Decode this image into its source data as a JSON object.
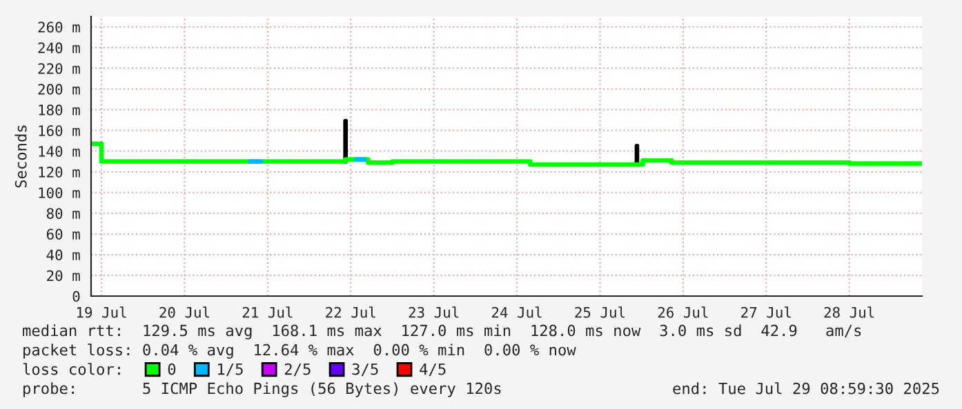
{
  "chart_data": {
    "type": "step",
    "ylabel": "Seconds",
    "legend_title": "loss color:",
    "legend": "bottom",
    "grid": true,
    "xlim": [
      "2025-07-19T09:00",
      "2025-07-29T09:00"
    ],
    "xticks": [
      {
        "value": "2025-07-19T12:00",
        "label": "19 Jul"
      },
      {
        "value": "2025-07-20T12:00",
        "label": "20 Jul"
      },
      {
        "value": "2025-07-21T12:00",
        "label": "21 Jul"
      },
      {
        "value": "2025-07-22T12:00",
        "label": "22 Jul"
      },
      {
        "value": "2025-07-23T12:00",
        "label": "23 Jul"
      },
      {
        "value": "2025-07-24T12:00",
        "label": "24 Jul"
      },
      {
        "value": "2025-07-25T12:00",
        "label": "25 Jul"
      },
      {
        "value": "2025-07-26T12:00",
        "label": "26 Jul"
      },
      {
        "value": "2025-07-27T12:00",
        "label": "27 Jul"
      },
      {
        "value": "2025-07-28T12:00",
        "label": "28 Jul"
      }
    ],
    "ylim": [
      0,
      270
    ],
    "yticks": [
      0,
      {
        "value": 20,
        "label": "20 m"
      },
      {
        "value": 40,
        "label": "40 m"
      },
      {
        "value": 60,
        "label": "60 m"
      },
      {
        "value": 80,
        "label": "80 m"
      },
      {
        "value": 100,
        "label": "100 m"
      },
      {
        "value": 120,
        "label": "120 m"
      },
      {
        "value": 140,
        "label": "140 m"
      },
      {
        "value": 160,
        "label": "160 m"
      },
      {
        "value": 180,
        "label": "180 m"
      },
      {
        "value": 200,
        "label": "200 m"
      },
      {
        "value": 220,
        "label": "220 m"
      },
      {
        "value": 240,
        "label": "240 m"
      },
      {
        "value": 260,
        "label": "260 m"
      }
    ],
    "series": [
      {
        "type": "line",
        "color": "#000000",
        "x": [
          "2025-07-22T10:30",
          "2025-07-22T10:30",
          "2025-07-23T00:00",
          "2025-07-25T22:40",
          "2025-07-25T22:40"
        ],
        "values": [
          130,
          169,
          null,
          127,
          145
        ]
      },
      {
        "name": "0",
        "color": "#00ff00",
        "x": [
          "2025-07-19T09:00",
          "2025-07-19T12:00",
          "2025-07-22T10:30",
          "2025-07-22T17:00",
          "2025-07-23T00:00",
          "2025-07-24T15:50",
          "2025-07-26T00:20",
          "2025-07-26T08:40",
          "2025-07-28T12:00",
          "2025-07-29T09:00"
        ],
        "values": [
          147,
          130,
          132,
          129,
          130,
          127,
          131,
          129,
          128,
          128
        ]
      },
      {
        "name": "1/5",
        "type": "line",
        "color": "#00b8ff",
        "x": [
          "2025-07-21T07:00",
          "2025-07-21T10:00",
          "2025-07-22T00:00",
          "2025-07-22T13:30",
          "2025-07-22T16:00"
        ],
        "values": [
          130,
          130,
          null,
          132,
          132
        ]
      },
      {
        "name": "2/5",
        "color": "#c800ff"
      },
      {
        "name": "3/5",
        "color": "#6600ff"
      },
      {
        "name": "4/5",
        "color": "#ff0000"
      }
    ],
    "annotations": [
      "median rtt:  129.5 ms avg  168.1 ms max  127.0 ms min  128.0 ms now  3.0 ms sd  42.9   am/s",
      "packet loss: 0.04 % avg  12.64 % max  0.00 % min  0.00 % now",
      "probe:       5 ICMP Echo Pings (56 Bytes) every 120s",
      "end: Tue Jul 29 08:59:30 2025"
    ]
  }
}
